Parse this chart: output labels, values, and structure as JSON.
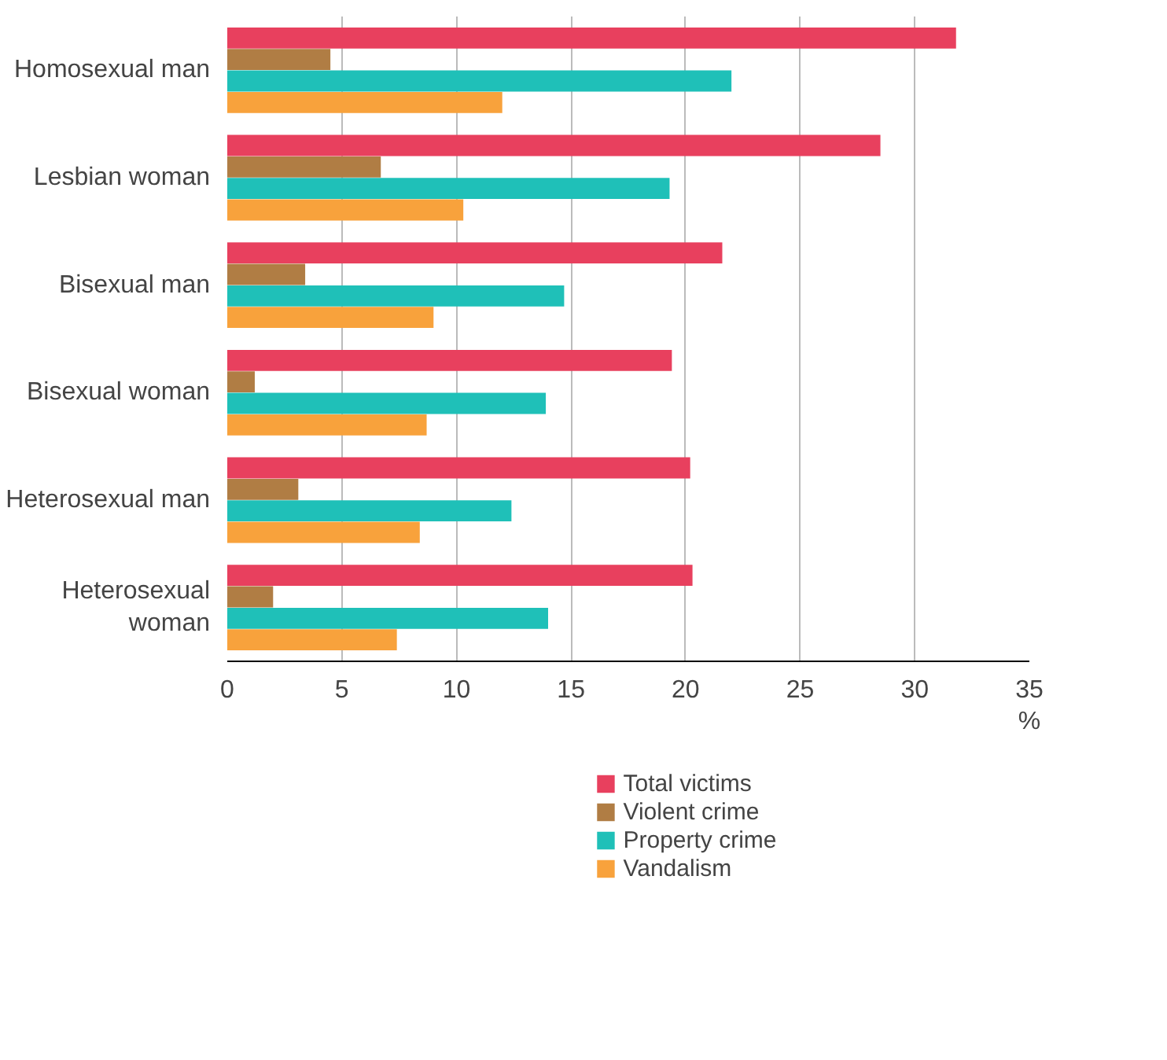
{
  "chart_data": {
    "type": "bar",
    "orientation": "horizontal",
    "xlabel": "%",
    "categories": [
      "Homosexual man",
      "Lesbian woman",
      "Bisexual man",
      "Bisexual woman",
      "Heterosexual man",
      "Heterosexual\nwoman"
    ],
    "series": [
      {
        "name": "Total victims",
        "color": "#e8405e",
        "values": [
          31.8,
          28.5,
          21.6,
          19.4,
          20.2,
          20.3
        ]
      },
      {
        "name": "Violent crime",
        "color": "#b07d44",
        "values": [
          4.5,
          6.7,
          3.4,
          1.2,
          3.1,
          2.0
        ]
      },
      {
        "name": "Property crime",
        "color": "#1fc0b8",
        "values": [
          22.0,
          19.3,
          14.7,
          13.9,
          12.4,
          14.0
        ]
      },
      {
        "name": "Vandalism",
        "color": "#f8a23c",
        "values": [
          12.0,
          10.3,
          9.0,
          8.7,
          8.4,
          7.4
        ]
      }
    ],
    "xlim": [
      0,
      35
    ],
    "xticks": [
      0,
      5,
      10,
      15,
      20,
      25,
      30,
      35
    ],
    "grid": "x",
    "legend": "bottom"
  }
}
